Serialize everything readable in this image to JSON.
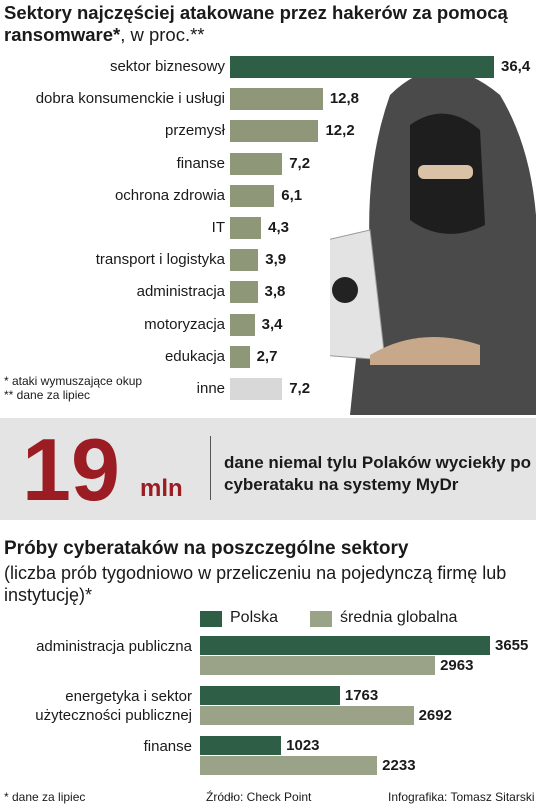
{
  "chart_data": [
    {
      "type": "bar",
      "title": "Sektory najczęściej atakowane przez hakerów za pomocą ransomware*",
      "subtitle": ", w proc.**",
      "categories": [
        "sektor biznesowy",
        "dobra konsumenckie i usługi",
        "przemysł",
        "finanse",
        "ochrona zdrowia",
        "IT",
        "transport i logistyka",
        "administracja",
        "motoryzacja",
        "edukacja",
        "inne"
      ],
      "values": [
        36.4,
        12.8,
        12.2,
        7.2,
        6.1,
        4.3,
        3.9,
        3.8,
        3.4,
        2.7,
        7.2
      ],
      "value_labels": [
        "36,4",
        "12,8",
        "12,2",
        "7,2",
        "6,1",
        "4,3",
        "3,9",
        "3,8",
        "3,4",
        "2,7",
        "7,2"
      ],
      "colors": [
        "#2e5e45",
        "#8e9878",
        "#8e9878",
        "#8e9878",
        "#8e9878",
        "#8e9878",
        "#8e9878",
        "#8e9878",
        "#8e9878",
        "#8e9878",
        "#d8d8d8"
      ],
      "footnotes": [
        "* ataki wymuszające okup",
        "** dane za lipiec"
      ]
    },
    {
      "type": "grouped-bar",
      "title": "Próby cyberataków na poszczególne sektory",
      "subtitle": "(liczba prób tygodniowo w przeliczeniu na pojedynczą firmę lub instytucję)*",
      "categories": [
        "administracja publiczna",
        "energetyka i sektor użyteczności publicznej",
        "finanse"
      ],
      "series": [
        {
          "name": "Polska",
          "color": "#2e5e45",
          "values": [
            3655,
            1763,
            1023
          ]
        },
        {
          "name": "średnia globalna",
          "color": "#9aa387",
          "values": [
            2963,
            2692,
            2233
          ]
        }
      ],
      "legend": "top"
    }
  ],
  "highlight": {
    "value": 19,
    "unit": "mln",
    "text": "dane niemal tylu Polaków wyciekły po cyberataku na systemy MyDr"
  },
  "footer": {
    "note": "* dane za lipiec",
    "source": "Źródło: Check Point",
    "credit": "Infografika: Tomasz Sitarski"
  }
}
